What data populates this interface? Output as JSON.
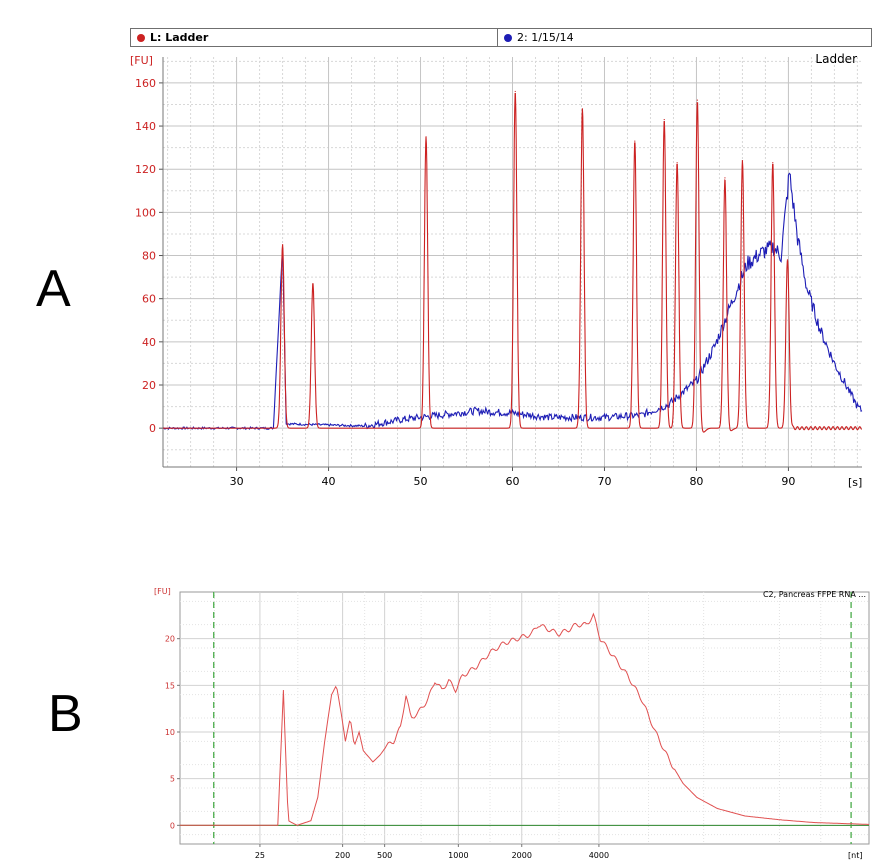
{
  "panel_labels": {
    "a": "A",
    "b": "B"
  },
  "chart_data": [
    {
      "type": "line",
      "legend": [
        {
          "name": "L: Ladder",
          "color": "#cc2222"
        },
        {
          "name": "2: 1/15/14",
          "color": "#1d1db5"
        }
      ],
      "corner_label": "Ladder",
      "ylabel": "[FU]",
      "xlabel": "[s]",
      "xlim": [
        22,
        98
      ],
      "ylim": [
        -18,
        172
      ],
      "xticks": [
        30,
        40,
        50,
        60,
        70,
        80,
        90
      ],
      "yticks": [
        0,
        20,
        40,
        60,
        80,
        100,
        120,
        140,
        160
      ],
      "grid": true,
      "ladder_peaks": [
        {
          "x": 35.0,
          "y": 85
        },
        {
          "x": 38.3,
          "y": 67
        },
        {
          "x": 50.6,
          "y": 135
        },
        {
          "x": 60.3,
          "y": 156
        },
        {
          "x": 67.6,
          "y": 148
        },
        {
          "x": 73.3,
          "y": 133
        },
        {
          "x": 76.5,
          "y": 143
        },
        {
          "x": 77.9,
          "y": 123
        },
        {
          "x": 80.1,
          "y": 152
        },
        {
          "x": 83.1,
          "y": 116
        },
        {
          "x": 85.0,
          "y": 124
        },
        {
          "x": 88.3,
          "y": 123
        },
        {
          "x": 89.9,
          "y": 78
        }
      ],
      "sample_trace": [
        [
          22,
          0
        ],
        [
          34,
          0
        ],
        [
          35,
          84
        ],
        [
          35.4,
          2
        ],
        [
          44,
          1
        ],
        [
          48,
          4
        ],
        [
          52,
          6
        ],
        [
          56,
          8
        ],
        [
          60,
          7
        ],
        [
          64,
          5
        ],
        [
          70,
          5
        ],
        [
          74,
          6
        ],
        [
          77,
          11
        ],
        [
          80,
          22
        ],
        [
          82,
          38
        ],
        [
          84,
          60
        ],
        [
          85.5,
          76
        ],
        [
          87,
          81
        ],
        [
          88.3,
          84
        ],
        [
          89.2,
          80
        ],
        [
          90.1,
          118
        ],
        [
          91,
          88
        ],
        [
          92,
          65
        ],
        [
          93.5,
          45
        ],
        [
          95,
          30
        ],
        [
          96.5,
          18
        ],
        [
          97.5,
          10
        ],
        [
          98,
          8
        ]
      ]
    },
    {
      "type": "line",
      "title": "C2, Pancreas FFPE RNA ...",
      "ylabel": "[FU]",
      "xlabel": "[nt]",
      "xtick_labels": [
        "25",
        "200",
        "500",
        "1000",
        "2000",
        "4000"
      ],
      "ylim": [
        -2,
        25
      ],
      "yticks": [
        0,
        5,
        10,
        15,
        20
      ],
      "grid": true,
      "trace": [
        [
          0,
          0
        ],
        [
          0.12,
          0
        ],
        [
          0.142,
          0
        ],
        [
          0.15,
          14.5
        ],
        [
          0.157,
          0.5
        ],
        [
          0.17,
          0
        ],
        [
          0.19,
          0.5
        ],
        [
          0.2,
          3
        ],
        [
          0.21,
          9
        ],
        [
          0.22,
          14
        ],
        [
          0.227,
          15
        ],
        [
          0.234,
          12
        ],
        [
          0.24,
          9
        ],
        [
          0.247,
          11.5
        ],
        [
          0.253,
          8.5
        ],
        [
          0.26,
          10
        ],
        [
          0.266,
          8
        ],
        [
          0.28,
          6.8
        ],
        [
          0.29,
          7.5
        ],
        [
          0.3,
          8.5
        ],
        [
          0.31,
          9
        ],
        [
          0.32,
          10.5
        ],
        [
          0.328,
          14
        ],
        [
          0.335,
          11.5
        ],
        [
          0.345,
          12
        ],
        [
          0.36,
          13.5
        ],
        [
          0.37,
          15.5
        ],
        [
          0.38,
          14.5
        ],
        [
          0.39,
          15.5
        ],
        [
          0.4,
          14.5
        ],
        [
          0.41,
          16
        ],
        [
          0.43,
          17
        ],
        [
          0.45,
          18.5
        ],
        [
          0.47,
          19.5
        ],
        [
          0.49,
          20
        ],
        [
          0.51,
          20.5
        ],
        [
          0.52,
          21.5
        ],
        [
          0.535,
          21
        ],
        [
          0.55,
          20.5
        ],
        [
          0.565,
          21
        ],
        [
          0.575,
          21.5
        ],
        [
          0.59,
          21.5
        ],
        [
          0.6,
          22.5
        ],
        [
          0.61,
          20
        ],
        [
          0.63,
          18
        ],
        [
          0.65,
          16
        ],
        [
          0.67,
          13.5
        ],
        [
          0.69,
          10
        ],
        [
          0.71,
          7
        ],
        [
          0.73,
          4.5
        ],
        [
          0.75,
          3
        ],
        [
          0.78,
          1.8
        ],
        [
          0.82,
          1
        ],
        [
          0.87,
          0.6
        ],
        [
          0.92,
          0.3
        ],
        [
          0.96,
          0.2
        ],
        [
          1.0,
          0.1
        ]
      ]
    }
  ]
}
